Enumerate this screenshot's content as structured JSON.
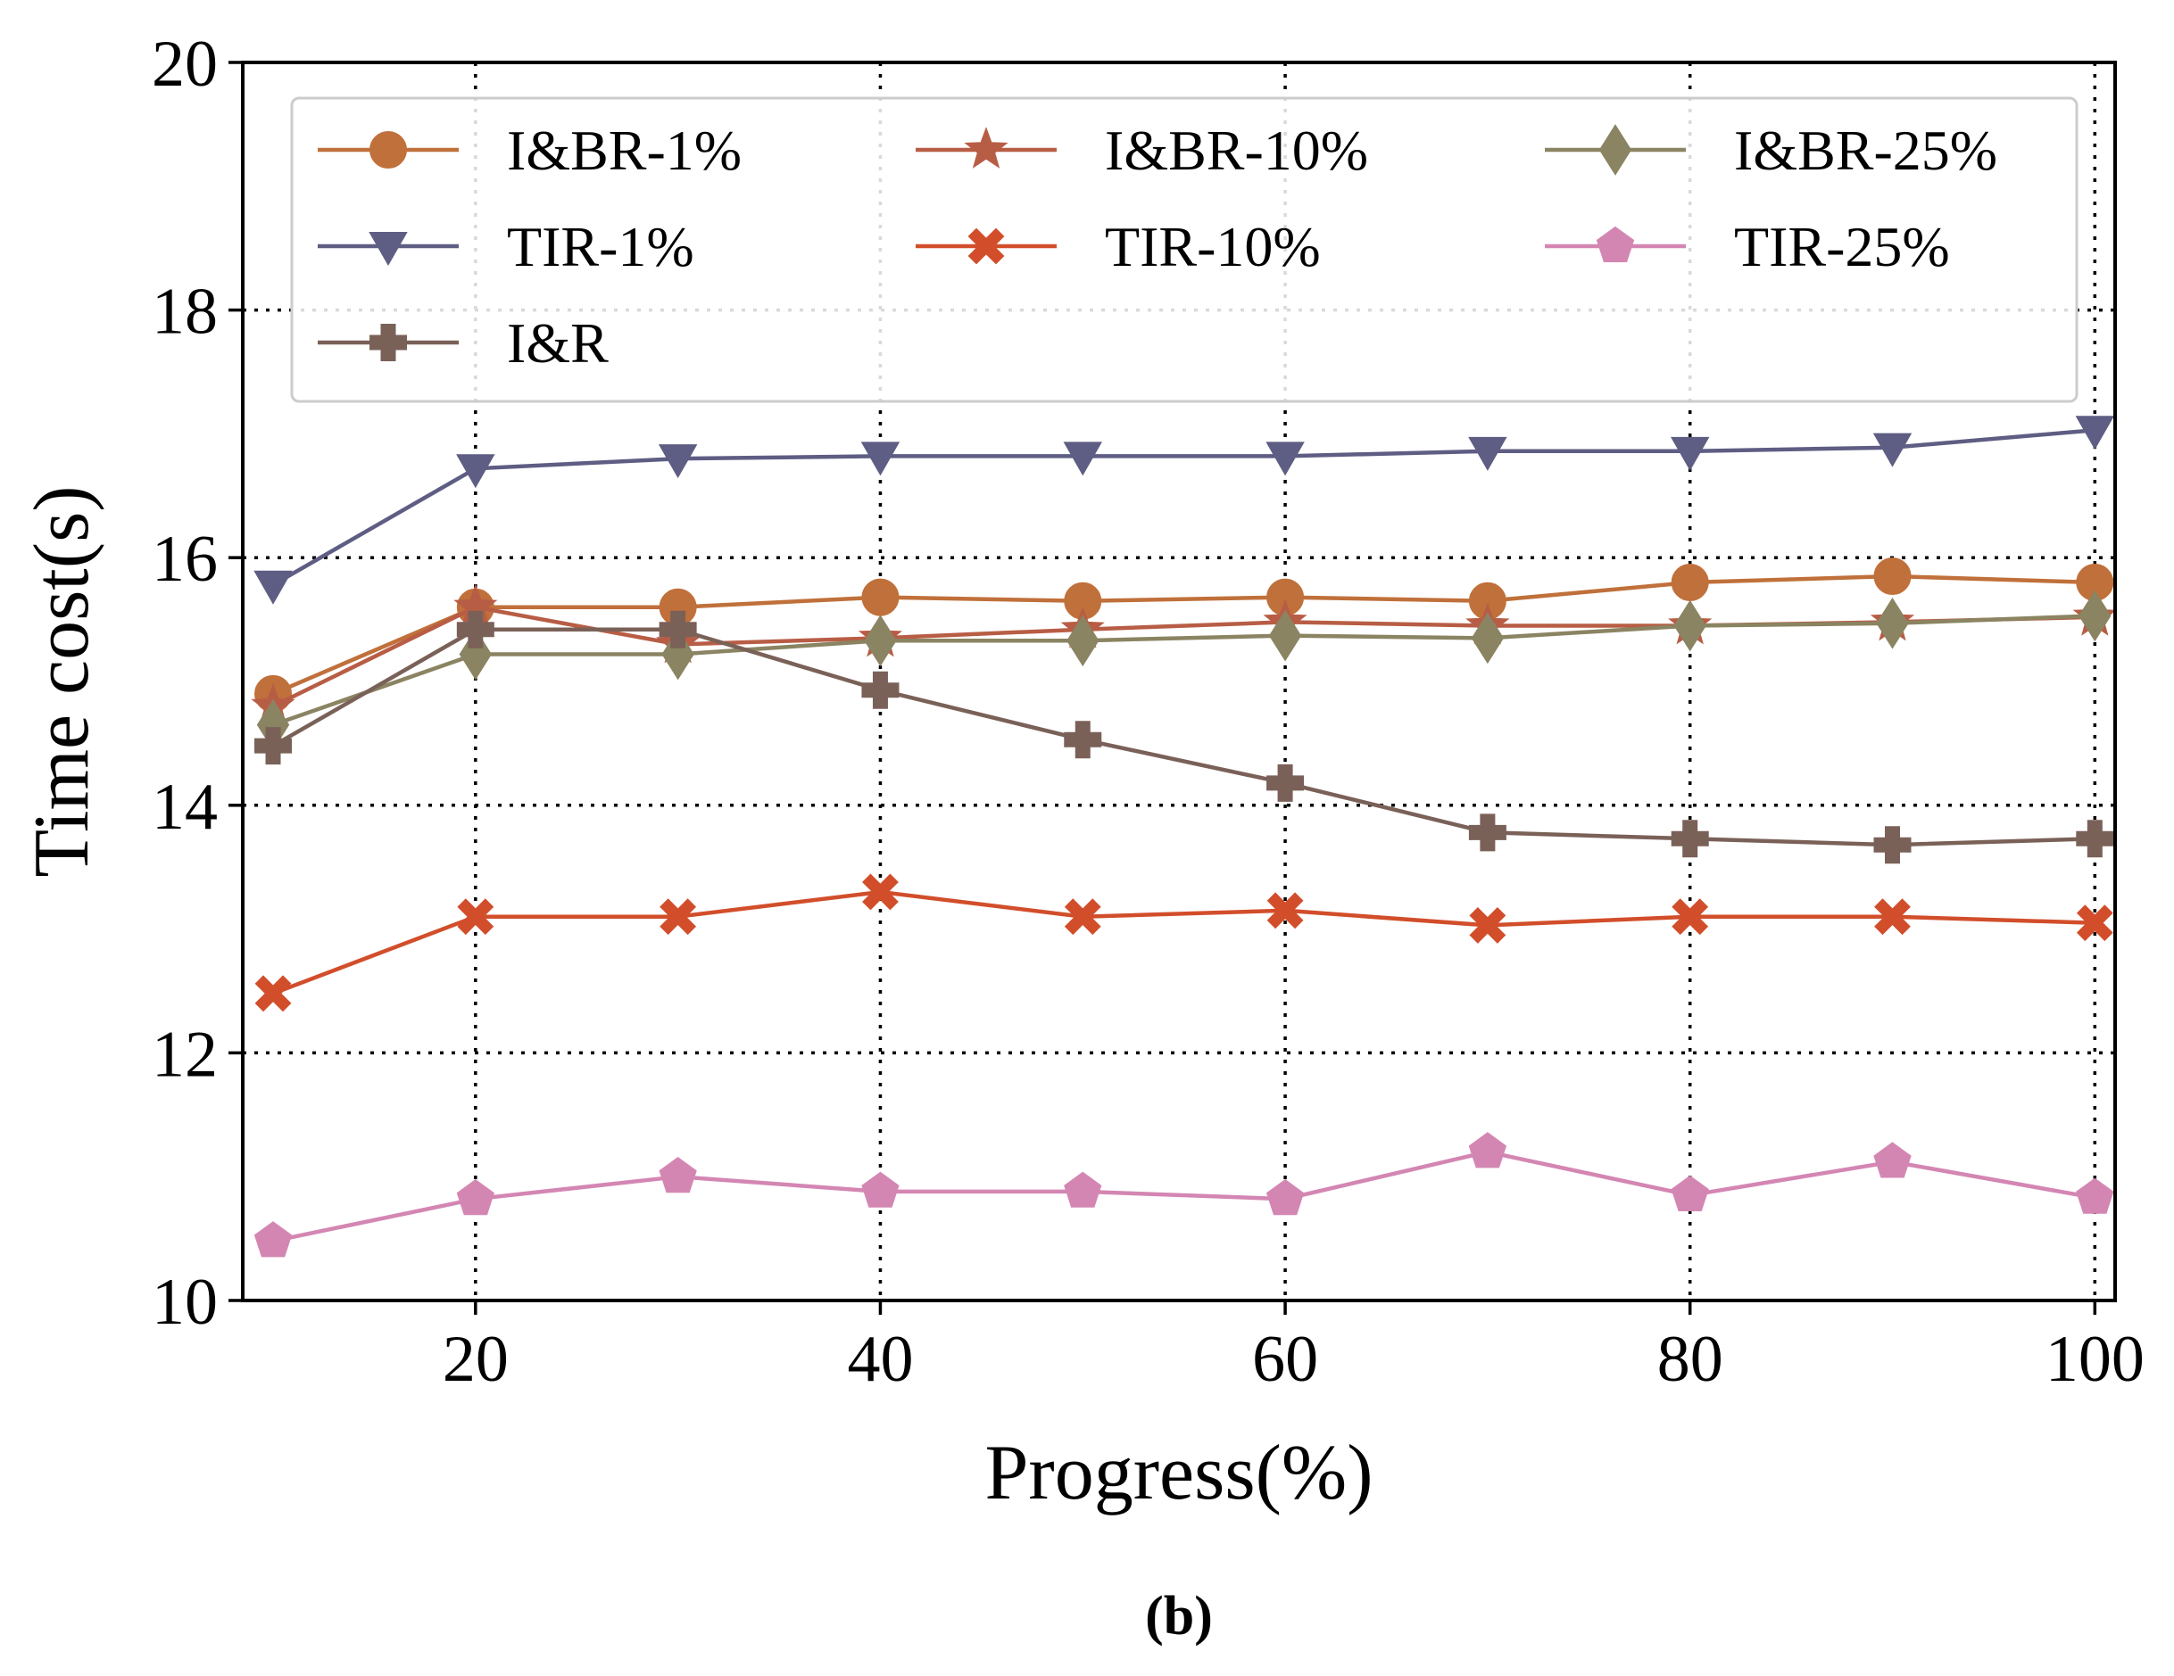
{
  "chart_data": {
    "type": "line",
    "title": "",
    "xlabel": "Progress(%)",
    "ylabel": "Time cost(s)",
    "caption": "(b)",
    "xlim": [
      8.5,
      101
    ],
    "ylim": [
      10,
      20
    ],
    "xticks": [
      20,
      40,
      60,
      80,
      100
    ],
    "yticks": [
      10,
      12,
      14,
      16,
      18,
      20
    ],
    "grid": true,
    "legend_position": "top",
    "x": [
      10,
      20,
      30,
      40,
      50,
      60,
      70,
      80,
      90,
      100
    ],
    "series": [
      {
        "name": "I&BR-1%",
        "color": "#c0703a",
        "marker": "circle",
        "values": [
          14.9,
          15.6,
          15.6,
          15.68,
          15.65,
          15.68,
          15.65,
          15.8,
          15.85,
          15.8
        ]
      },
      {
        "name": "I&BR-10%",
        "color": "#b85d45",
        "marker": "star",
        "values": [
          14.8,
          15.6,
          15.3,
          15.35,
          15.42,
          15.48,
          15.45,
          15.45,
          15.48,
          15.52
        ]
      },
      {
        "name": "I&BR-25%",
        "color": "#8a8462",
        "marker": "diamond",
        "values": [
          14.65,
          15.22,
          15.22,
          15.33,
          15.33,
          15.37,
          15.35,
          15.45,
          15.47,
          15.53
        ]
      },
      {
        "name": "TIR-1%",
        "color": "#5e5d83",
        "marker": "triangle-down",
        "values": [
          15.78,
          16.72,
          16.8,
          16.82,
          16.82,
          16.82,
          16.86,
          16.86,
          16.89,
          17.03
        ]
      },
      {
        "name": "TIR-10%",
        "color": "#d24e2b",
        "marker": "x",
        "values": [
          12.48,
          13.1,
          13.1,
          13.3,
          13.1,
          13.15,
          13.03,
          13.1,
          13.1,
          13.05
        ]
      },
      {
        "name": "TIR-25%",
        "color": "#d486b3",
        "marker": "pentagon",
        "values": [
          10.48,
          10.82,
          11.0,
          10.88,
          10.88,
          10.82,
          11.2,
          10.85,
          11.12,
          10.83
        ]
      },
      {
        "name": "I&R",
        "color": "#7a6158",
        "marker": "plus",
        "values": [
          14.48,
          15.42,
          15.42,
          14.93,
          14.53,
          14.18,
          13.78,
          13.73,
          13.68,
          13.73
        ]
      }
    ]
  }
}
